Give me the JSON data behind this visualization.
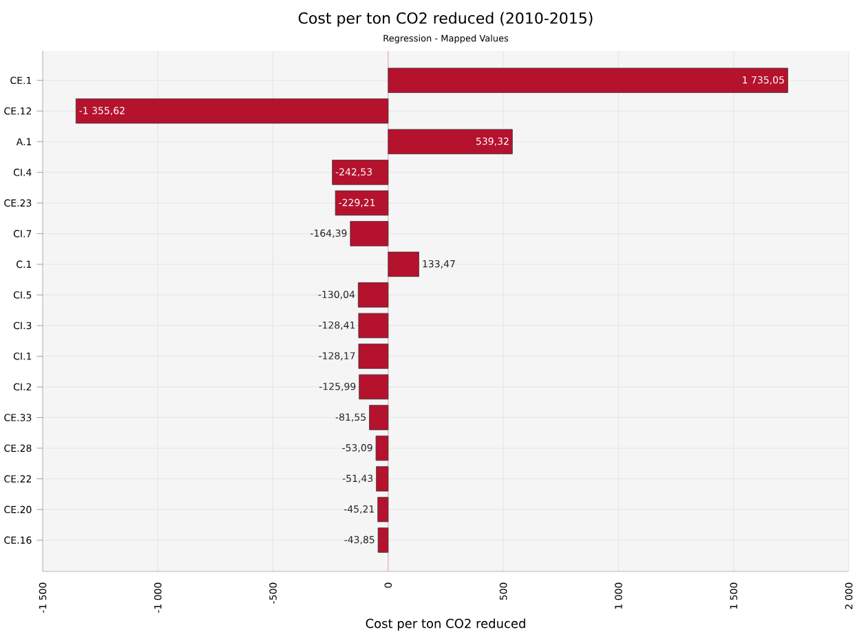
{
  "chart_data": {
    "type": "bar",
    "orientation": "horizontal",
    "title": "Cost per ton CO2 reduced (2010-2015)",
    "subtitle": "Regression - Mapped Values",
    "xlabel": "Cost per ton CO2 reduced",
    "categories": [
      "CE.1",
      "CE.12",
      "A.1",
      "CI.4",
      "CE.23",
      "CI.7",
      "C.1",
      "CI.5",
      "CI.3",
      "CI.1",
      "CI.2",
      "CE.33",
      "CE.28",
      "CE.22",
      "CE.20",
      "CE.16"
    ],
    "values": [
      1735.05,
      -1355.62,
      539.32,
      -242.53,
      -229.21,
      -164.39,
      133.47,
      -130.04,
      -128.41,
      -128.17,
      -125.99,
      -81.55,
      -53.09,
      -51.43,
      -45.21,
      -43.85
    ],
    "value_labels": [
      "1 735,05",
      "-1 355,62",
      "539,32",
      "-242,53",
      "-229,21",
      "-164,39",
      "133,47",
      "-130,04",
      "-128,41",
      "-128,17",
      "-125,99",
      "-81,55",
      "-53,09",
      "-51,43",
      "-45,21",
      "-43,85"
    ],
    "color": "#b5122e",
    "xlim": [
      -1500,
      2000
    ],
    "xticks": [
      {
        "value": -1500,
        "label": "-1 500"
      },
      {
        "value": -1000,
        "label": "-1 000"
      },
      -500,
      0,
      500,
      {
        "value": 1000,
        "label": "1 000"
      },
      {
        "value": 1500,
        "label": "1 500"
      },
      {
        "value": 2000,
        "label": "2 000"
      }
    ],
    "ref_lines": [
      {
        "axis": "x",
        "value": 0,
        "color": "#f0a0b4"
      }
    ],
    "grid": true
  }
}
